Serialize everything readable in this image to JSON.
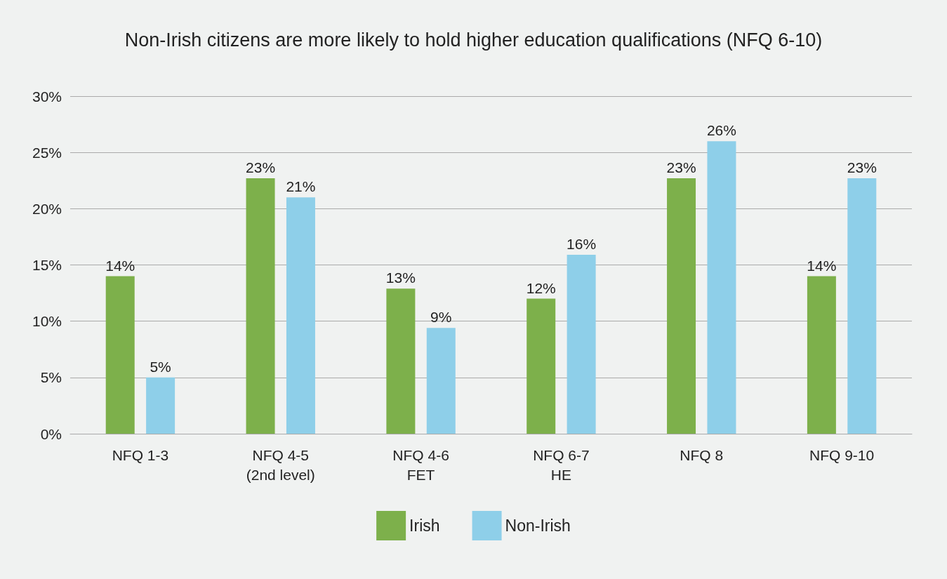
{
  "chart_data": {
    "type": "bar",
    "title": "Non-Irish citizens are more likely to hold higher education qualifications (NFQ 6-10)",
    "categories": [
      "NFQ 1-3",
      "NFQ 4-5\n(2nd level)",
      "NFQ 4-6\nFET",
      "NFQ 6-7\nHE",
      "NFQ 8",
      "NFQ 9-10"
    ],
    "series": [
      {
        "name": "Irish",
        "color": "#7db04b",
        "values": [
          14,
          22.7,
          12.9,
          12,
          22.7,
          14
        ],
        "value_labels": [
          "14%",
          "23%",
          "13%",
          "12%",
          "23%",
          "14%"
        ]
      },
      {
        "name": "Non-Irish",
        "color": "#8ecfe9",
        "values": [
          5,
          21,
          9.4,
          15.9,
          26,
          22.7
        ],
        "value_labels": [
          "5%",
          "21%",
          "9%",
          "16%",
          "26%",
          "23%"
        ]
      }
    ],
    "ylim": [
      0,
      30
    ],
    "yticks": [
      {
        "value": 0,
        "label": "0%"
      },
      {
        "value": 5,
        "label": "5%"
      },
      {
        "value": 10,
        "label": "10%"
      },
      {
        "value": 15,
        "label": "15%"
      },
      {
        "value": 20,
        "label": "20%"
      },
      {
        "value": 25,
        "label": "25%"
      },
      {
        "value": 30,
        "label": "30%"
      }
    ],
    "grid": "y",
    "legend": "bottom"
  }
}
